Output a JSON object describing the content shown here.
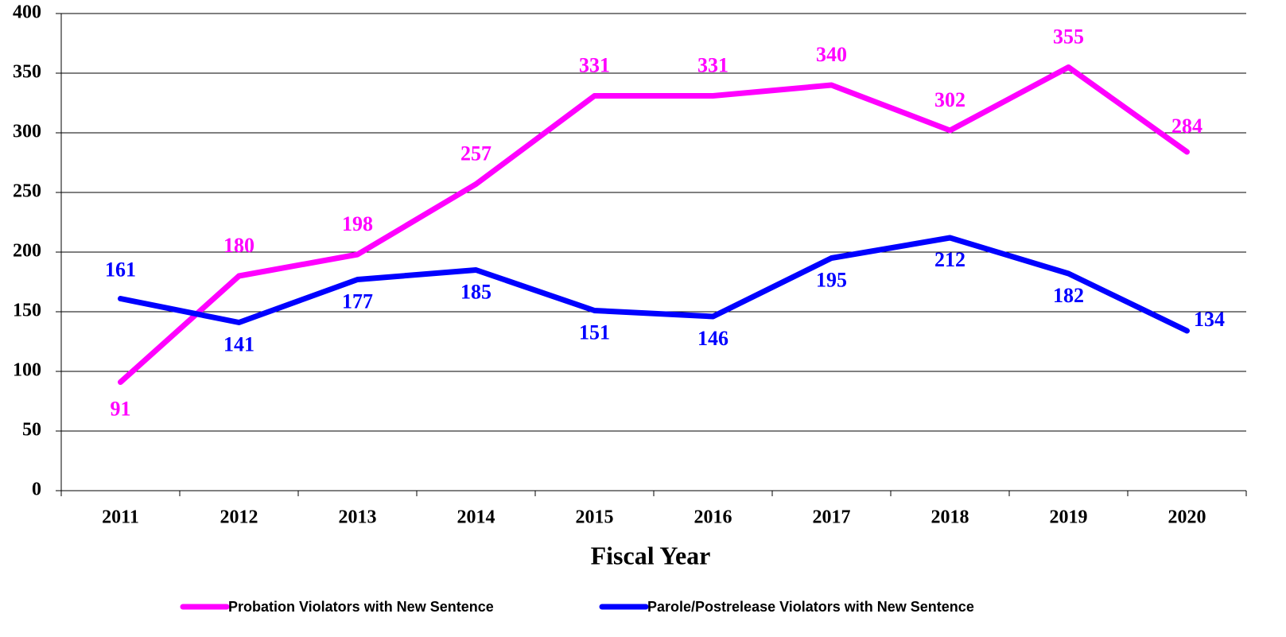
{
  "chart_data": {
    "type": "line",
    "x_label": "Fiscal Year",
    "categories": [
      "2011",
      "2012",
      "2013",
      "2014",
      "2015",
      "2016",
      "2017",
      "2018",
      "2019",
      "2020"
    ],
    "series": [
      {
        "name": "Probation Violators with New Sentence",
        "color": "#ff00ff",
        "values": [
          91,
          180,
          198,
          257,
          331,
          331,
          340,
          302,
          355,
          284
        ]
      },
      {
        "name": "Parole/Postrelease Violators with New Sentence",
        "color": "#0000ff",
        "values": [
          161,
          141,
          177,
          185,
          151,
          146,
          195,
          212,
          182,
          134
        ]
      }
    ],
    "ylim": [
      0,
      400
    ],
    "yticks": [
      0,
      50,
      100,
      150,
      200,
      250,
      300,
      350,
      400
    ],
    "grid": true,
    "legend": "bottom"
  }
}
